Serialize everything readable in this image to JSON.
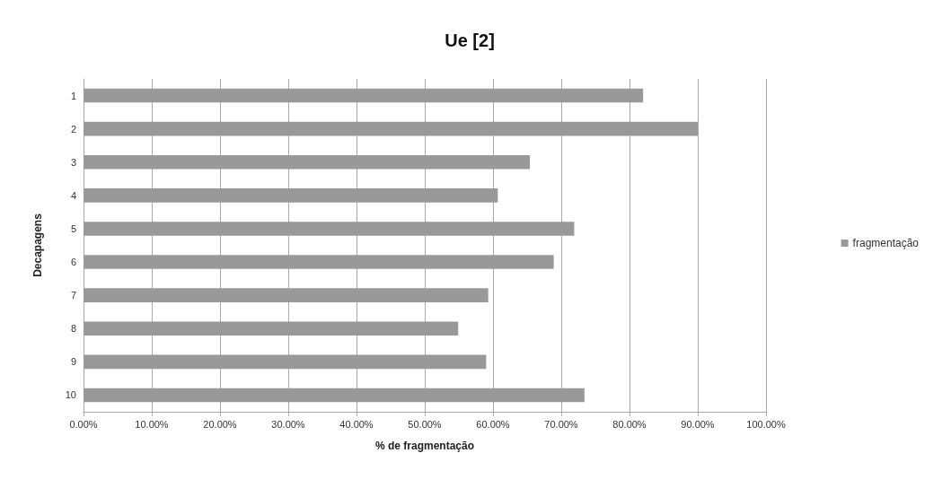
{
  "chart_data": {
    "type": "bar",
    "orientation": "horizontal",
    "title": "Ue [2]",
    "xlabel": "% de fragmentação",
    "ylabel": "Decapagens",
    "categories": [
      "1",
      "2",
      "3",
      "4",
      "5",
      "6",
      "7",
      "8",
      "9",
      "10"
    ],
    "series": [
      {
        "name": "fragmentação",
        "color": "#999999",
        "values": [
          82.0,
          90.0,
          65.4,
          60.7,
          71.9,
          68.9,
          59.3,
          54.9,
          59.0,
          73.4
        ]
      }
    ],
    "xlim": [
      0,
      100
    ],
    "xticks": [
      {
        "value": 0,
        "label": "0.00%"
      },
      {
        "value": 10,
        "label": "10.00%"
      },
      {
        "value": 20,
        "label": "20.00%"
      },
      {
        "value": 30,
        "label": "30.00%"
      },
      {
        "value": 40,
        "label": "40.00%"
      },
      {
        "value": 50,
        "label": "50.00%"
      },
      {
        "value": 60,
        "label": "60.00%"
      },
      {
        "value": 70,
        "label": "70.00%"
      },
      {
        "value": 80,
        "label": "80.00%"
      },
      {
        "value": 90,
        "label": "90.00%"
      },
      {
        "value": 100,
        "label": "100.00%"
      }
    ],
    "grid": "x",
    "legend": "right"
  }
}
